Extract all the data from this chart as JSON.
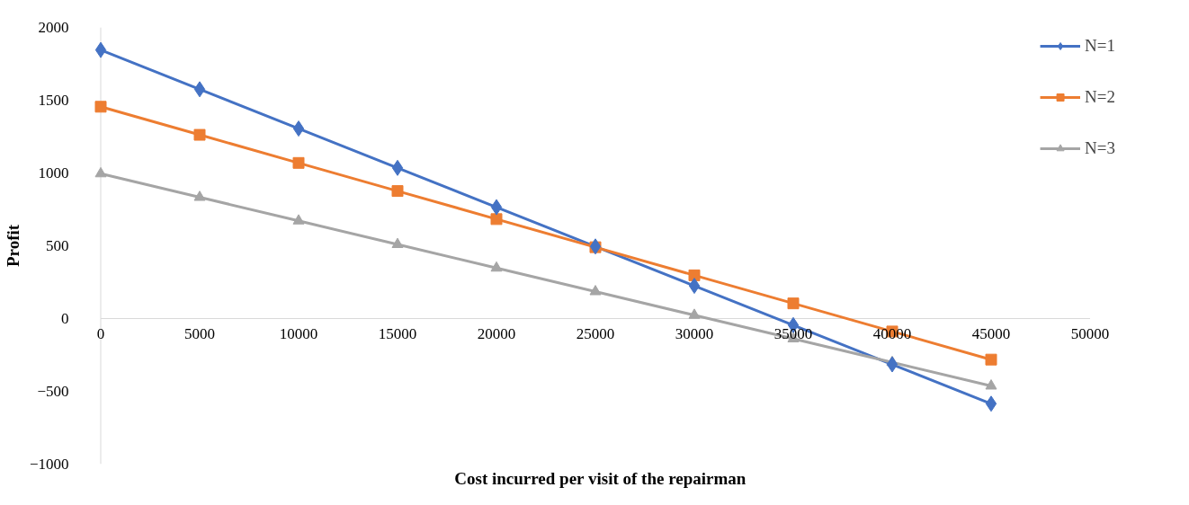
{
  "chart_data": {
    "type": "line",
    "xlabel": "Cost incurred per visit of the repairman",
    "ylabel": "Profit",
    "x": [
      0,
      5000,
      10000,
      15000,
      20000,
      25000,
      30000,
      35000,
      40000,
      45000
    ],
    "series": [
      {
        "name": "N=1",
        "color": "#4472c4",
        "marker": "diamond",
        "values": [
          1845,
          1575,
          1305,
          1035,
          765,
          495,
          225,
          -45,
          -315,
          -585
        ]
      },
      {
        "name": "N=2",
        "color": "#ed7d31",
        "marker": "square",
        "values": [
          1455,
          1262,
          1069,
          876,
          683,
          490,
          297,
          104,
          -89,
          -282
        ]
      },
      {
        "name": "N=3",
        "color": "#a5a5a5",
        "marker": "triangle",
        "values": [
          995,
          833,
          671,
          509,
          347,
          185,
          23,
          -139,
          -301,
          -463
        ]
      }
    ],
    "xlim": [
      0,
      50000
    ],
    "xticks": [
      0,
      5000,
      10000,
      15000,
      20000,
      25000,
      30000,
      35000,
      40000,
      45000,
      50000
    ],
    "ylim": [
      -1000,
      2000
    ],
    "yticks": [
      -1000,
      -500,
      0,
      500,
      1000,
      1500,
      2000
    ],
    "grid": false,
    "legend": "right",
    "line_style": "solid"
  }
}
